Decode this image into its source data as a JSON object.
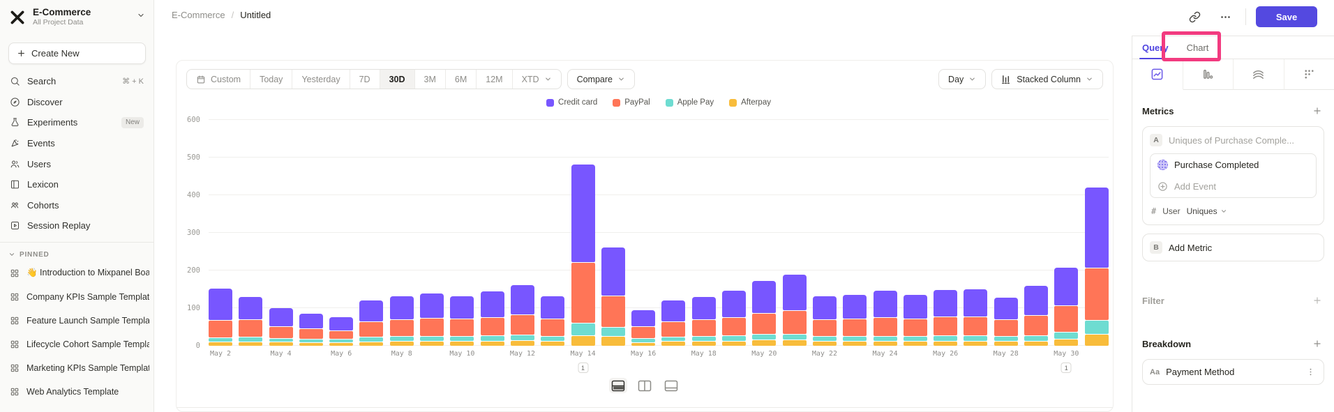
{
  "colors": {
    "accent": "#5449E0",
    "annotation_highlight": "#F23B80",
    "sidebar_bg": "#FAFAF8"
  },
  "sidebar": {
    "project_name": "E-Commerce",
    "project_subtitle": "All Project Data",
    "create_new_label": "Create New",
    "nav_items": [
      {
        "label": "Search",
        "icon": "search-icon",
        "shortcut": "⌘ + K"
      },
      {
        "label": "Discover",
        "icon": "discover-icon"
      },
      {
        "label": "Experiments",
        "icon": "experiments-icon",
        "badge": "New"
      },
      {
        "label": "Events",
        "icon": "events-icon"
      },
      {
        "label": "Users",
        "icon": "users-icon"
      },
      {
        "label": "Lexicon",
        "icon": "lexicon-icon"
      },
      {
        "label": "Cohorts",
        "icon": "cohorts-icon"
      },
      {
        "label": "Session Replay",
        "icon": "session-replay-icon"
      }
    ],
    "pinned_label": "PINNED",
    "pinned_items": [
      {
        "label": "👋 Introduction to Mixpanel Board",
        "icon": "board-grid-icon"
      },
      {
        "label": "Company KPIs Sample Template",
        "icon": "board-grid-icon"
      },
      {
        "label": "Feature Launch Sample Template",
        "icon": "board-grid-icon"
      },
      {
        "label": "Lifecycle Cohort Sample Template",
        "icon": "board-grid-icon"
      },
      {
        "label": "Marketing KPIs Sample Template",
        "icon": "board-grid-icon"
      },
      {
        "label": "Web Analytics Template",
        "icon": "board-grid-icon"
      }
    ]
  },
  "topbar": {
    "breadcrumb": {
      "project": "E-Commerce",
      "separator": "/",
      "title": "Untitled"
    },
    "link_icon": "link-icon",
    "more_icon": "more-horizontal-icon",
    "save_label": "Save"
  },
  "toolbar": {
    "date_ranges": [
      "Custom",
      "Today",
      "Yesterday",
      "7D",
      "30D",
      "3M",
      "6M",
      "12M",
      "XTD"
    ],
    "active_range": "30D",
    "compare_label": "Compare",
    "granularity_label": "Day",
    "chart_type_label": "Stacked Column",
    "chart_type_icon": "stacked-column-icon"
  },
  "chart_data": {
    "type": "bar",
    "stacked": true,
    "title": "",
    "xlabel": "",
    "ylabel": "",
    "ylim": [
      0,
      620
    ],
    "yticks": [
      0,
      100,
      200,
      300,
      400,
      500,
      600
    ],
    "grid": true,
    "legend_position": "top",
    "x": [
      "May 2",
      "May 3",
      "May 4",
      "May 5",
      "May 6",
      "May 7",
      "May 8",
      "May 9",
      "May 10",
      "May 11",
      "May 12",
      "May 13",
      "May 14",
      "May 15",
      "May 16",
      "May 17",
      "May 18",
      "May 19",
      "May 20",
      "May 21",
      "May 22",
      "May 23",
      "May 24",
      "May 25",
      "May 26",
      "May 27",
      "May 28",
      "May 29",
      "May 30",
      "May 31"
    ],
    "x_tick_every": 2,
    "series": [
      {
        "name": "Credit card",
        "color": "#7856FF",
        "values": [
          84,
          60,
          48,
          38,
          34,
          55,
          62,
          65,
          60,
          68,
          78,
          60,
          260,
          128,
          42,
          56,
          60,
          70,
          85,
          95,
          62,
          63,
          70,
          62,
          70,
          72,
          58,
          78,
          100,
          214
        ]
      },
      {
        "name": "PayPal",
        "color": "#FF7557",
        "values": [
          45,
          44,
          30,
          26,
          22,
          40,
          42,
          45,
          44,
          46,
          52,
          44,
          158,
          80,
          30,
          38,
          42,
          46,
          55,
          60,
          42,
          44,
          47,
          45,
          48,
          48,
          42,
          52,
          68,
          136
        ]
      },
      {
        "name": "Apple Pay",
        "color": "#6EDCD1",
        "values": [
          9,
          10,
          8,
          7,
          7,
          10,
          11,
          11,
          11,
          12,
          13,
          11,
          32,
          23,
          8,
          10,
          11,
          12,
          13,
          14,
          11,
          11,
          11,
          11,
          12,
          12,
          11,
          12,
          16,
          36
        ]
      },
      {
        "name": "Afterpay",
        "color": "#F8BC3B",
        "values": [
          9,
          10,
          9,
          8,
          7,
          10,
          11,
          12,
          11,
          12,
          13,
          11,
          26,
          24,
          8,
          11,
          11,
          12,
          14,
          14,
          11,
          11,
          12,
          11,
          12,
          12,
          11,
          12,
          17,
          29
        ]
      }
    ],
    "annotations": [
      {
        "x_index": 12,
        "label": "1"
      },
      {
        "x_index": 28,
        "label": "1"
      }
    ]
  },
  "right_panel": {
    "tabs": [
      {
        "label": "Query",
        "active": true
      },
      {
        "label": "Chart",
        "active": false
      }
    ],
    "highlighted_tab": "Chart",
    "metrics": {
      "header": "Metrics",
      "row_letter": "A",
      "metric_placeholder": "Uniques of Purchase Comple...",
      "event_name": "Purchase Completed",
      "add_event_label": "Add Event",
      "aggregation": {
        "symbol": "#",
        "entity": "User",
        "function": "Uniques"
      },
      "add_metric_letter": "B",
      "add_metric_label": "Add Metric"
    },
    "filter_header": "Filter",
    "breakdown_header": "Breakdown",
    "breakdown_item": {
      "type_badge": "Aa",
      "label": "Payment Method"
    }
  }
}
